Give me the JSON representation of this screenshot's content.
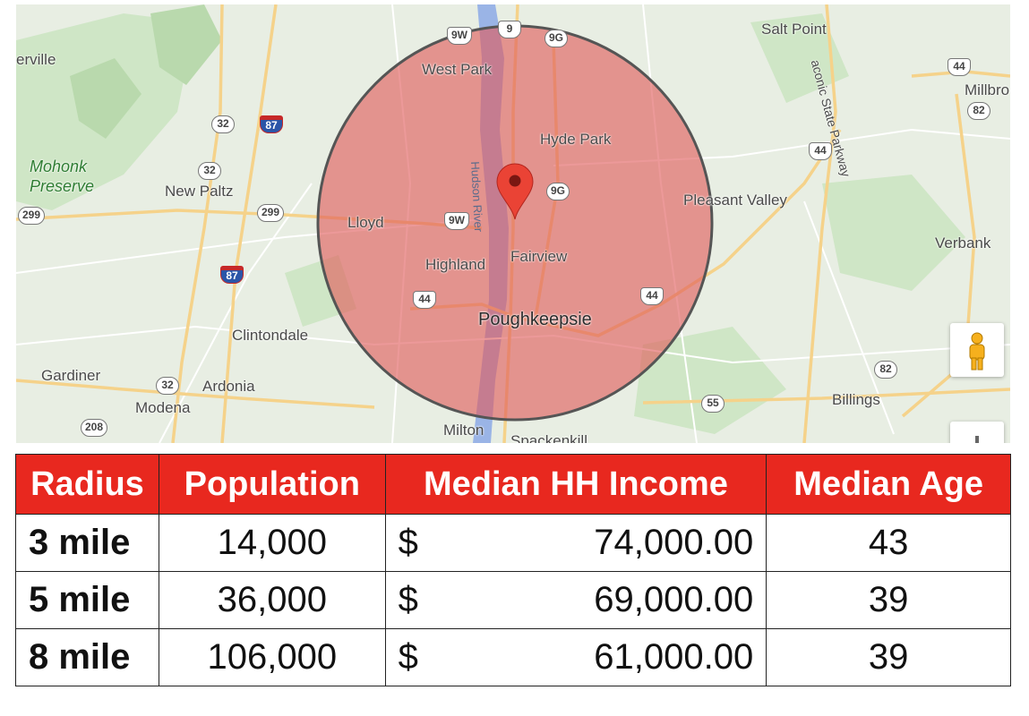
{
  "map": {
    "places": {
      "salt_point": "Salt Point",
      "erville": "erville",
      "west_park": "West Park",
      "millbro": "Millbro",
      "hyde_park": "Hyde Park",
      "mohonk_preserve": "Mohonk\nPreserve",
      "new_paltz": "New Paltz",
      "pleasant_valley": "Pleasant Valley",
      "lloyd": "Lloyd",
      "verbank": "Verbank",
      "highland": "Highland",
      "fairview": "Fairview",
      "poughkeepsie": "Poughkeepsie",
      "clintondale": "Clintondale",
      "gardiner": "Gardiner",
      "ardonia": "Ardonia",
      "modena": "Modena",
      "billings": "Billings",
      "milton": "Milton",
      "spackenkill": "Spackenkill",
      "hudson_river": "Hudson River",
      "taconic_parkway": "aconic State Parkway"
    },
    "shields": {
      "9w_top": "9W",
      "9_top": "9",
      "9g_top": "9G",
      "44_ne": "44",
      "82_ne": "82",
      "32_a": "32",
      "87_a": "87",
      "32_b": "32",
      "44_mid": "44",
      "9g_mid": "9G",
      "299_w": "299",
      "299_e": "299",
      "9w_mid": "9W",
      "87_b": "87",
      "44_sw": "44",
      "44_se": "44",
      "82_se": "82",
      "32_c": "32",
      "55": "55",
      "208": "208"
    },
    "radius_circle_color": "#e05a5a",
    "marker_color": "#ea4335"
  },
  "table": {
    "headers": [
      "Radius",
      "Population",
      "Median HH Income",
      "Median Age"
    ],
    "header_color": "#e8281f",
    "rows": [
      {
        "radius": "3 mile",
        "population": "14,000",
        "currency": "$",
        "income": "74,000.00",
        "age": "43"
      },
      {
        "radius": "5 mile",
        "population": "36,000",
        "currency": "$",
        "income": "69,000.00",
        "age": "39"
      },
      {
        "radius": "8 mile",
        "population": "106,000",
        "currency": "$",
        "income": "61,000.00",
        "age": "39"
      }
    ]
  }
}
